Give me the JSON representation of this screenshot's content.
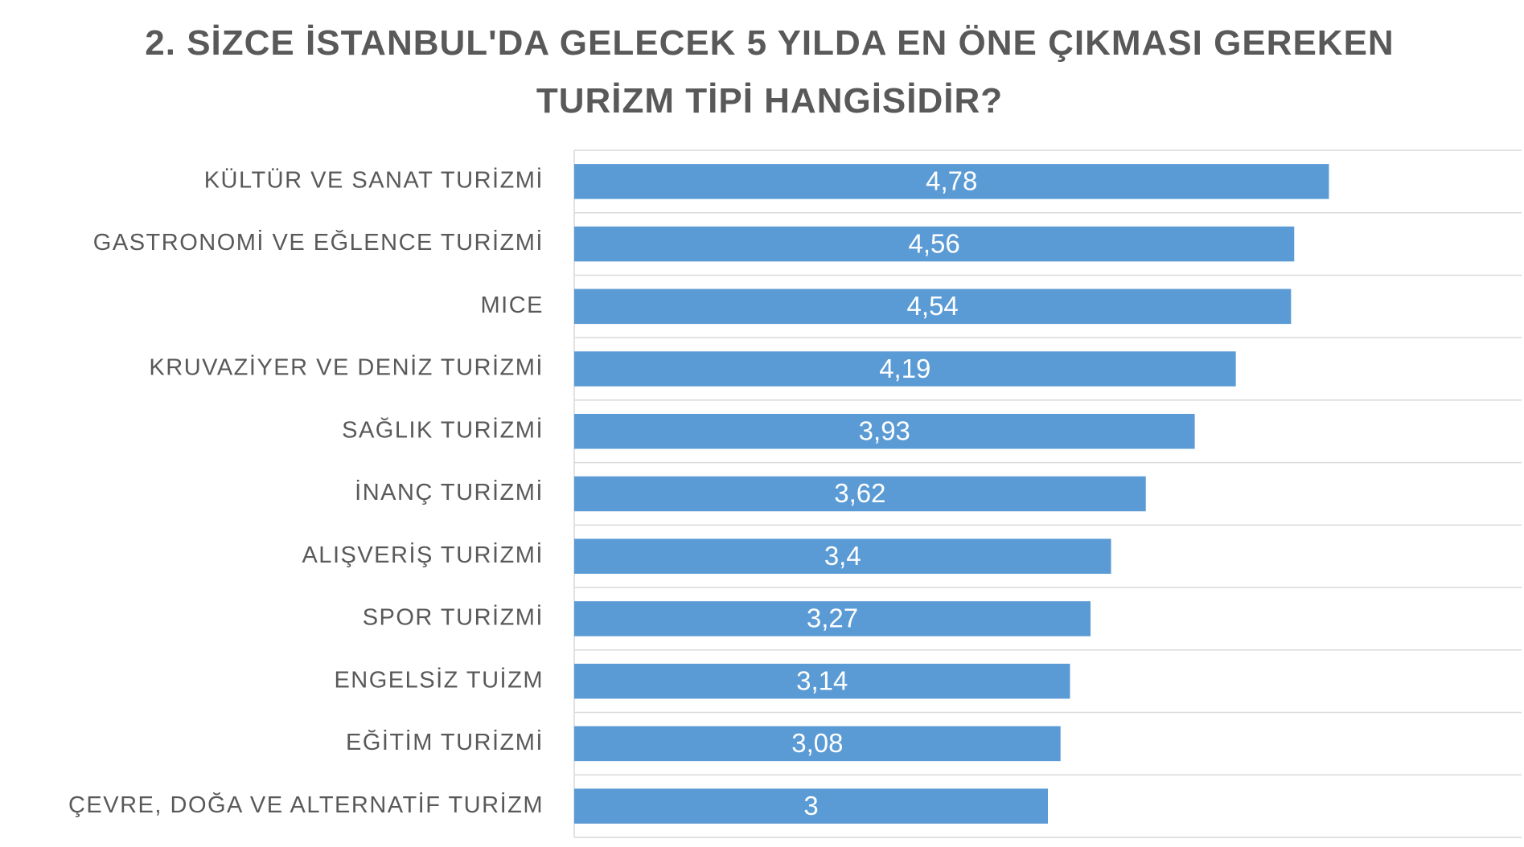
{
  "chart_data": {
    "type": "bar",
    "orientation": "horizontal",
    "title": "2. SİZCE İSTANBUL'DA GELECEK 5 YILDA EN ÖNE ÇIKMASI GEREKEN TURİZM TİPİ HANGİSİDİR?",
    "categories": [
      "KÜLTÜR VE SANAT TURİZMİ",
      "GASTRONOMİ VE EĞLENCE TURİZMİ",
      "MICE",
      "KRUVAZİYER VE DENİZ TURİZMİ",
      "SAĞLIK TURİZMİ",
      "İNANÇ TURİZMİ",
      "ALIŞVERİŞ TURİZMİ",
      "SPOR TURİZMİ",
      "ENGELSİZ TUİZM",
      "EĞİTİM TURİZMİ",
      "ÇEVRE, DOĞA VE ALTERNATİF TURİZM"
    ],
    "values": [
      4.78,
      4.56,
      4.54,
      4.19,
      3.93,
      3.62,
      3.4,
      3.27,
      3.14,
      3.08,
      3
    ],
    "value_labels": [
      "4,78",
      "4,56",
      "4,54",
      "4,19",
      "3,93",
      "3,62",
      "3,4",
      "3,27",
      "3,14",
      "3,08",
      "3"
    ],
    "color": "#5b9bd5",
    "xlim": [
      0,
      6
    ]
  }
}
